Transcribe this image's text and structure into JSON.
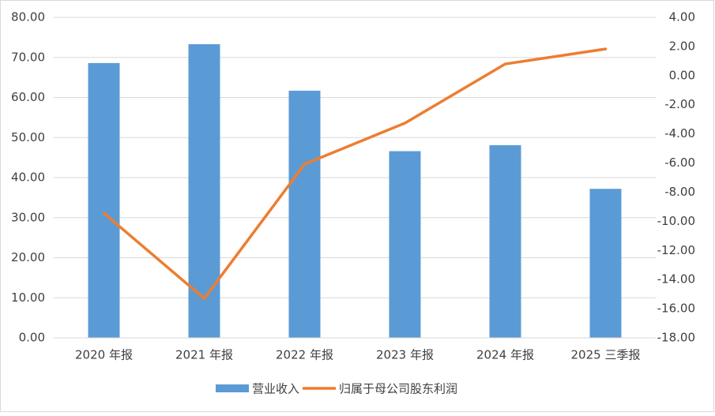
{
  "chart_data": {
    "type": "bar-line",
    "categories": [
      "2020 年报",
      "2021 年报",
      "2022 年报",
      "2023 年报",
      "2024 年报",
      "2025 三季报"
    ],
    "series": [
      {
        "name": "营业收入",
        "type": "bar",
        "color": "#5b9bd5",
        "values": [
          68.6,
          73.3,
          61.7,
          46.6,
          48.1,
          37.2
        ]
      },
      {
        "name": "归属于母公司股东利润",
        "type": "line",
        "axis": "y2",
        "color": "#ed7d31",
        "values": [
          -9.44,
          -15.3,
          -6.08,
          -3.26,
          0.8,
          1.83
        ]
      }
    ],
    "ylim": [
      0,
      80
    ],
    "yticks": [
      {
        "value": 0,
        "label": "0.00"
      },
      {
        "value": 10,
        "label": "10.00"
      },
      {
        "value": 20,
        "label": "20.00"
      },
      {
        "value": 30,
        "label": "30.00"
      },
      {
        "value": 40,
        "label": "40.00"
      },
      {
        "value": 50,
        "label": "50.00"
      },
      {
        "value": 60,
        "label": "60.00"
      },
      {
        "value": 70,
        "label": "70.00"
      },
      {
        "value": 80,
        "label": "80.00"
      }
    ],
    "y2lim": [
      -18,
      4
    ],
    "y2ticks": [
      {
        "value": -18,
        "label": "-18.00"
      },
      {
        "value": -16,
        "label": "-16.00"
      },
      {
        "value": -14,
        "label": "-14.00"
      },
      {
        "value": -12,
        "label": "-12.00"
      },
      {
        "value": -10,
        "label": "-10.00"
      },
      {
        "value": -8,
        "label": "-8.00"
      },
      {
        "value": -6,
        "label": "-6.00"
      },
      {
        "value": -4,
        "label": "-4.00"
      },
      {
        "value": -2,
        "label": "-2.00"
      },
      {
        "value": 0,
        "label": "0.00"
      },
      {
        "value": 2,
        "label": "2.00"
      },
      {
        "value": 4,
        "label": "4.00"
      }
    ],
    "grid": true,
    "legend": "bottom"
  }
}
